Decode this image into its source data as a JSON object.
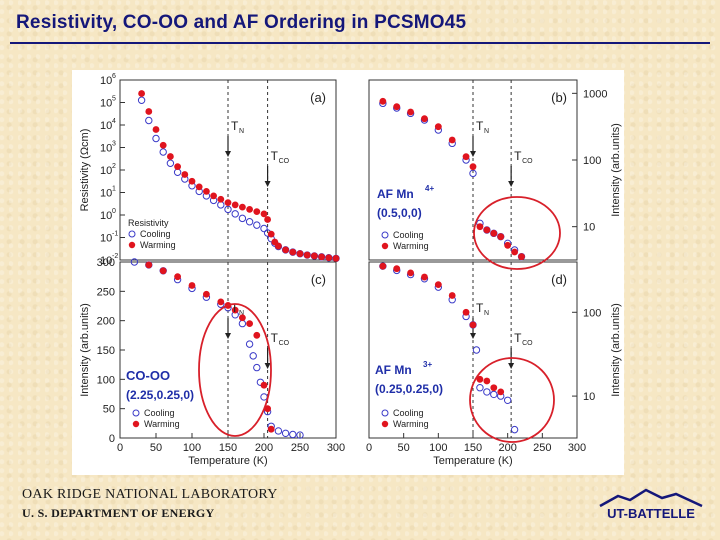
{
  "slide": {
    "title": "Resistivity, CO-OO and AF Ordering in PCSMO45",
    "footer_lab": "OAK RIDGE NATIONAL LABORATORY",
    "footer_dept": "U. S. DEPARTMENT OF ENERGY",
    "logo_text": "UT-BATTELLE",
    "colors": {
      "title": "#14177a",
      "warming": "#e0141e",
      "cooling": "#3a3ac8",
      "accent_text": "#1f2ea8",
      "green_text": "#17a317",
      "circle": "#d8202a"
    }
  },
  "chart_data": [
    {
      "id": "a",
      "type": "scatter",
      "panel_label": "(a)",
      "xlim": [
        0,
        300
      ],
      "ylog": true,
      "ylim_exp": [
        -2,
        6
      ],
      "ylabel": "Resistivity (Ωcm)",
      "yticks": [
        {
          "label": "10",
          "exp": "6",
          "v": 6
        },
        {
          "label": "10",
          "exp": "5",
          "v": 5
        },
        {
          "label": "10",
          "exp": "4",
          "v": 4
        },
        {
          "label": "10",
          "exp": "3",
          "v": 3
        },
        {
          "label": "10",
          "exp": "2",
          "v": 2
        },
        {
          "label": "10",
          "exp": "1",
          "v": 1
        },
        {
          "label": "10",
          "exp": "0",
          "v": 0
        },
        {
          "label": "10",
          "exp": "-1",
          "v": -1
        },
        {
          "label": "10",
          "exp": "-2",
          "v": -2
        }
      ],
      "legend": {
        "title": "Resistivity",
        "cooling": "Cooling",
        "warming": "Warming"
      },
      "markers": [
        {
          "label": "T",
          "sub": "N",
          "x": 150
        },
        {
          "label": "T",
          "sub": "CO",
          "x": 205
        }
      ],
      "series": [
        {
          "name": "Cooling",
          "kind": "cooling",
          "x": [
            30,
            40,
            50,
            60,
            70,
            80,
            90,
            100,
            110,
            120,
            130,
            140,
            150,
            160,
            170,
            180,
            190,
            200,
            205,
            210,
            215,
            220,
            230,
            240,
            250,
            260,
            270,
            280,
            290,
            300
          ],
          "y": [
            5.1,
            4.2,
            3.4,
            2.8,
            2.3,
            1.9,
            1.6,
            1.3,
            1.05,
            0.85,
            0.65,
            0.45,
            0.25,
            0.05,
            -0.15,
            -0.3,
            -0.45,
            -0.6,
            -0.8,
            -1.05,
            -1.25,
            -1.4,
            -1.55,
            -1.65,
            -1.72,
            -1.78,
            -1.82,
            -1.86,
            -1.9,
            -1.93
          ]
        },
        {
          "name": "Warming",
          "kind": "warming",
          "x": [
            30,
            40,
            50,
            60,
            70,
            80,
            90,
            100,
            110,
            120,
            130,
            140,
            150,
            160,
            170,
            180,
            190,
            200,
            205,
            210,
            215,
            220,
            230,
            240,
            250,
            260,
            270,
            280,
            290,
            300
          ],
          "y": [
            5.4,
            4.6,
            3.8,
            3.1,
            2.6,
            2.15,
            1.8,
            1.5,
            1.25,
            1.05,
            0.85,
            0.7,
            0.55,
            0.45,
            0.35,
            0.25,
            0.15,
            0.05,
            -0.2,
            -0.85,
            -1.2,
            -1.38,
            -1.55,
            -1.65,
            -1.72,
            -1.78,
            -1.82,
            -1.86,
            -1.9,
            -1.93
          ]
        }
      ]
    },
    {
      "id": "b",
      "type": "scatter",
      "panel_label": "(b)",
      "xlim": [
        0,
        300
      ],
      "ylog": true,
      "ylim_exp": [
        0.5,
        3.2
      ],
      "ylabel": "Intensity (arb.units)",
      "yticks": [
        {
          "label": "1000",
          "v": 3
        },
        {
          "label": "100",
          "v": 2
        },
        {
          "label": "10",
          "v": 1
        }
      ],
      "annotation": {
        "line1": "AF Mn",
        "sup": "4+",
        "line2": "(0.5,0,0)"
      },
      "legend": {
        "cooling": "Cooling",
        "warming": "Warming"
      },
      "markers": [
        {
          "label": "T",
          "sub": "N",
          "x": 150
        },
        {
          "label": "T",
          "sub": "CO",
          "x": 205
        }
      ],
      "series": [
        {
          "name": "Cooling",
          "kind": "cooling",
          "x": [
            20,
            40,
            60,
            80,
            100,
            120,
            140,
            150,
            160,
            170,
            180,
            190,
            200,
            210,
            220
          ],
          "y": [
            2.85,
            2.78,
            2.7,
            2.6,
            2.45,
            2.25,
            2.0,
            1.8,
            1.05,
            0.95,
            0.9,
            0.85,
            0.75,
            0.65,
            0.55
          ]
        },
        {
          "name": "Warming",
          "kind": "warming",
          "x": [
            20,
            40,
            60,
            80,
            100,
            120,
            140,
            150,
            160,
            170,
            180,
            190,
            200,
            210,
            220
          ],
          "y": [
            2.88,
            2.8,
            2.72,
            2.62,
            2.5,
            2.3,
            2.05,
            1.9,
            1.0,
            0.95,
            0.9,
            0.85,
            0.72,
            0.62,
            0.55
          ]
        }
      ]
    },
    {
      "id": "c",
      "type": "scatter",
      "panel_label": "(c)",
      "xlim": [
        0,
        300
      ],
      "ylim": [
        0,
        300
      ],
      "xlabel": "Temperature (K)",
      "ylabel": "Intensity (arb.units)",
      "xticks": [
        0,
        50,
        100,
        150,
        200,
        250,
        300
      ],
      "yticks": [
        0,
        50,
        100,
        150,
        200,
        250,
        300
      ],
      "annotation": {
        "line1": "CO-OO",
        "line2": "(2.25,0.25,0)"
      },
      "legend": {
        "cooling": "Cooling",
        "warming": "Warming"
      },
      "markers": [
        {
          "label": "T",
          "sub": "N",
          "x": 150
        },
        {
          "label": "T",
          "sub": "CO",
          "x": 205
        }
      ],
      "series": [
        {
          "name": "Cooling",
          "kind": "cooling",
          "x": [
            20,
            40,
            60,
            80,
            100,
            120,
            140,
            150,
            160,
            170,
            180,
            185,
            190,
            195,
            200,
            205,
            210,
            220,
            230,
            240,
            250
          ],
          "y": [
            300,
            295,
            285,
            270,
            255,
            240,
            228,
            222,
            210,
            195,
            160,
            140,
            120,
            95,
            70,
            45,
            20,
            12,
            8,
            6,
            5
          ]
        },
        {
          "name": "Warming",
          "kind": "warming",
          "x": [
            40,
            60,
            80,
            100,
            120,
            140,
            150,
            160,
            170,
            180,
            190,
            200,
            205,
            210
          ],
          "y": [
            295,
            285,
            275,
            260,
            245,
            232,
            226,
            218,
            205,
            195,
            175,
            90,
            50,
            15
          ]
        }
      ]
    },
    {
      "id": "d",
      "type": "scatter",
      "panel_label": "(d)",
      "xlim": [
        0,
        300
      ],
      "ylog": true,
      "ylim_exp": [
        0.5,
        2.6
      ],
      "xlabel": "Temperature (K)",
      "ylabel": "Intensity (arb.units)",
      "xticks": [
        0,
        50,
        100,
        150,
        200,
        250,
        300
      ],
      "yticks": [
        {
          "label": "100",
          "v": 2
        },
        {
          "label": "10",
          "v": 1
        }
      ],
      "annotation": {
        "line1": "AF Mn",
        "sup": "3+",
        "line2": "(0.25,0.25,0)"
      },
      "legend": {
        "cooling": "Cooling",
        "warming": "Warming"
      },
      "markers": [
        {
          "label": "T",
          "sub": "N",
          "x": 150
        },
        {
          "label": "T",
          "sub": "CO",
          "x": 205
        }
      ],
      "series": [
        {
          "name": "Cooling",
          "kind": "cooling",
          "x": [
            20,
            40,
            60,
            80,
            100,
            120,
            140,
            150,
            155,
            160,
            170,
            180,
            190,
            200,
            210
          ],
          "y": [
            2.55,
            2.5,
            2.45,
            2.4,
            2.3,
            2.15,
            1.95,
            1.85,
            1.55,
            1.1,
            1.05,
            1.02,
            1.0,
            0.95,
            0.6
          ]
        },
        {
          "name": "Warming",
          "kind": "warming",
          "x": [
            20,
            40,
            60,
            80,
            100,
            120,
            140,
            150,
            160,
            170,
            180,
            190
          ],
          "y": [
            2.55,
            2.52,
            2.47,
            2.42,
            2.33,
            2.2,
            2.0,
            1.85,
            1.2,
            1.18,
            1.1,
            1.05
          ]
        }
      ]
    }
  ]
}
